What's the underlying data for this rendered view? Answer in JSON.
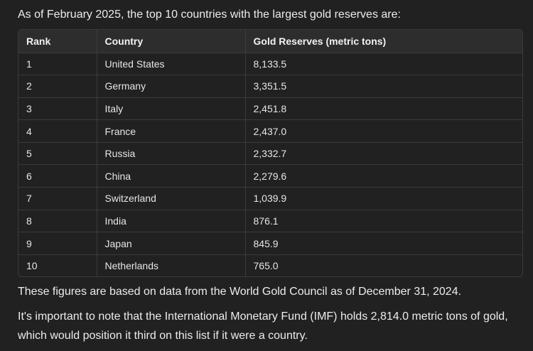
{
  "intro_text": "As of February 2025, the top 10 countries with the largest gold reserves are:",
  "table": {
    "headers": {
      "rank": "Rank",
      "country": "Country",
      "reserves": "Gold Reserves (metric tons)"
    },
    "rows": [
      {
        "rank": "1",
        "country": "United States",
        "reserves": "8,133.5"
      },
      {
        "rank": "2",
        "country": "Germany",
        "reserves": "3,351.5"
      },
      {
        "rank": "3",
        "country": "Italy",
        "reserves": "2,451.8"
      },
      {
        "rank": "4",
        "country": "France",
        "reserves": "2,437.0"
      },
      {
        "rank": "5",
        "country": "Russia",
        "reserves": "2,332.7"
      },
      {
        "rank": "6",
        "country": "China",
        "reserves": "2,279.6"
      },
      {
        "rank": "7",
        "country": "Switzerland",
        "reserves": "1,039.9"
      },
      {
        "rank": "8",
        "country": "India",
        "reserves": "876.1"
      },
      {
        "rank": "9",
        "country": "Japan",
        "reserves": "845.9"
      },
      {
        "rank": "10",
        "country": "Netherlands",
        "reserves": "765.0"
      }
    ]
  },
  "source_note": "These figures are based on data from the World Gold Council as of December 31, 2024.",
  "imf_note": "It's important to note that the International Monetary Fund (IMF) holds 2,814.0 metric tons of gold, which would position it third on this list if it were a country.",
  "colors": {
    "background": "#212121",
    "header_background": "#2d2d2d",
    "border": "#3b3b3b",
    "text": "#ececec"
  }
}
